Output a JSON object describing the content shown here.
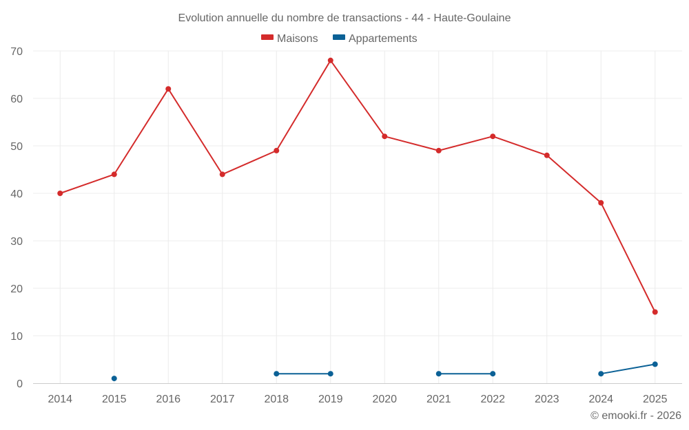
{
  "chart_data": {
    "type": "line",
    "title": "Evolution annuelle du nombre de transactions - 44 - Haute-Goulaine",
    "categories": [
      "2014",
      "2015",
      "2016",
      "2017",
      "2018",
      "2019",
      "2020",
      "2021",
      "2022",
      "2023",
      "2024",
      "2025"
    ],
    "ylim": [
      0,
      70
    ],
    "yticks": [
      0,
      10,
      20,
      30,
      40,
      50,
      60,
      70
    ],
    "grid": true,
    "legend_position": "top-center",
    "series": [
      {
        "name": "Maisons",
        "color": "#d42b2b",
        "values": [
          40,
          44,
          62,
          44,
          49,
          68,
          52,
          49,
          52,
          48,
          38,
          15
        ]
      },
      {
        "name": "Appartements",
        "color": "#0b6196",
        "values": [
          null,
          1,
          null,
          null,
          2,
          2,
          null,
          2,
          2,
          null,
          2,
          4
        ]
      }
    ]
  },
  "credit": "© emooki.fr - 2026"
}
